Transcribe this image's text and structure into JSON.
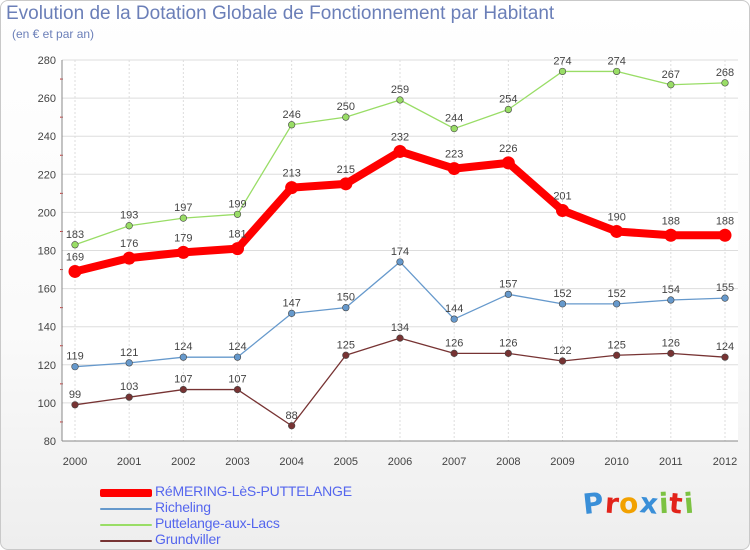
{
  "title": "Evolution de la Dotation Globale de Fonctionnement par Habitant",
  "subtitle": "(en € et par an)",
  "logo": {
    "text": "Proxiti",
    "letters": [
      "P",
      "r",
      "o",
      "x",
      "i",
      "t",
      "i"
    ],
    "colors": [
      "#3a8fd8",
      "#e2231a",
      "#f2a100",
      "#3a8fd8",
      "#7cc242",
      "#e2231a",
      "#7cc242"
    ]
  },
  "chart_data": {
    "type": "line",
    "title": "Evolution de la Dotation Globale de Fonctionnement par Habitant",
    "subtitle": "(en € et par an)",
    "x": [
      "2000",
      "2001",
      "2002",
      "2003",
      "2004",
      "2005",
      "2006",
      "2007",
      "2008",
      "2009",
      "2010",
      "2011",
      "2012"
    ],
    "ylim": [
      80,
      280
    ],
    "yticks": [
      80,
      100,
      120,
      140,
      160,
      180,
      200,
      220,
      240,
      260,
      280
    ],
    "grid": true,
    "legend_position": "bottom-left",
    "series": [
      {
        "name": "RéMERING-LèS-PUTTELANGE",
        "color": "#ff0000",
        "emphasis": true,
        "values": [
          169,
          176,
          179,
          181,
          213,
          215,
          232,
          223,
          226,
          201,
          190,
          188,
          188
        ]
      },
      {
        "name": "Richeling",
        "color": "#6699cc",
        "emphasis": false,
        "values": [
          119,
          121,
          124,
          124,
          147,
          150,
          174,
          144,
          157,
          152,
          152,
          154,
          155
        ]
      },
      {
        "name": "Puttelange-aux-Lacs",
        "color": "#99dd66",
        "emphasis": false,
        "values": [
          183,
          193,
          197,
          199,
          246,
          250,
          259,
          244,
          254,
          274,
          274,
          267,
          268
        ]
      },
      {
        "name": "Grundviller",
        "color": "#773333",
        "emphasis": false,
        "values": [
          99,
          103,
          107,
          107,
          88,
          125,
          134,
          126,
          126,
          122,
          125,
          126,
          124
        ]
      }
    ]
  }
}
